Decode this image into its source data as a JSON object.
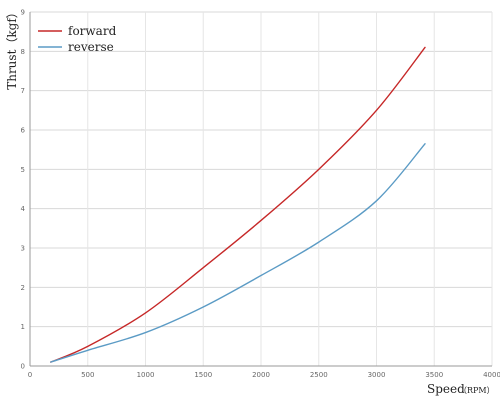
{
  "chart_data": {
    "type": "line",
    "xlabel": "Speed",
    "xlabel_unit": "（RPM）",
    "ylabel": "Thrust（kgf）",
    "xlim": [
      0,
      4000
    ],
    "ylim": [
      0,
      9
    ],
    "x_ticks": [
      0,
      500,
      1000,
      1500,
      2000,
      2500,
      3000,
      3500,
      4000
    ],
    "y_ticks": [
      0,
      1,
      2,
      3,
      4,
      5,
      6,
      7,
      8,
      9
    ],
    "grid": true,
    "legend_position": "top-left",
    "series": [
      {
        "name": "forward",
        "color": "#c62828",
        "x": [
          180,
          500,
          1000,
          1500,
          2000,
          2500,
          3000,
          3420
        ],
        "y": [
          0.1,
          0.5,
          1.35,
          2.5,
          3.7,
          5.0,
          6.5,
          8.1
        ]
      },
      {
        "name": "reverse",
        "color": "#5b9bc5",
        "x": [
          180,
          500,
          1000,
          1500,
          2000,
          2500,
          3000,
          3420
        ],
        "y": [
          0.1,
          0.4,
          0.85,
          1.5,
          2.3,
          3.15,
          4.2,
          5.65
        ]
      }
    ]
  }
}
